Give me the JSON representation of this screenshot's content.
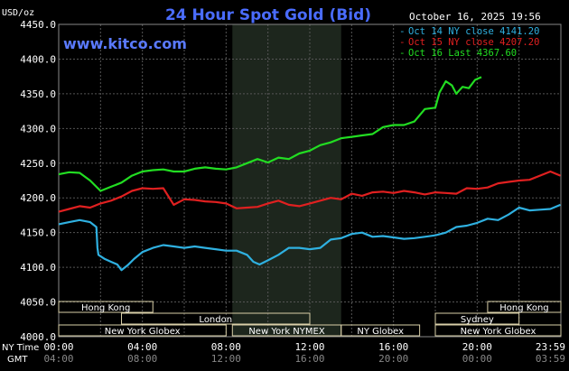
{
  "header": {
    "title": "24 Hour Spot Gold (Bid)",
    "datetime": "October 16, 2025 19:56",
    "watermark": "www.kitco.com",
    "unit": "USD/oz"
  },
  "legend": [
    {
      "text": "Oct 14 NY close 4141.20",
      "color": "#2fb0e0"
    },
    {
      "text": "Oct 15 NY close 4207.20",
      "color": "#e02020"
    },
    {
      "text": "Oct 16 Last 4367.60",
      "color": "#22dd22"
    }
  ],
  "axis_labels": {
    "ny_time": "NY Time",
    "gmt": "GMT"
  },
  "sessions": [
    {
      "label": "Hong Kong",
      "start": 0,
      "end": 4.5,
      "row": 0
    },
    {
      "label": "Hong Kong",
      "start": 20.5,
      "end": 24,
      "row": 0
    },
    {
      "label": "London",
      "start": 3,
      "end": 12,
      "row": 1
    },
    {
      "label": "Sydney",
      "start": 18,
      "end": 22,
      "row": 1
    },
    {
      "label": "New York Globex",
      "start": 0,
      "end": 8,
      "row": 2
    },
    {
      "label": "New York NYMEX",
      "start": 8.3,
      "end": 13.5,
      "row": 2
    },
    {
      "label": "NY Globex",
      "start": 13.5,
      "end": 17.25,
      "row": 2
    },
    {
      "label": "New York Globex",
      "start": 18,
      "end": 24,
      "row": 2
    }
  ],
  "colors": {
    "background": "#000000",
    "grid": "#555555",
    "title": "#4a6cff",
    "watermark": "#5a7aff",
    "text": "#ffffff",
    "gmt_text": "#888888",
    "session_fill": "#d9cfa8",
    "nymex_shade": "#1d261d"
  },
  "chart_data": {
    "type": "line",
    "title": "24 Hour Spot Gold (Bid)",
    "ylabel": "USD/oz",
    "xlabel": "",
    "ylim": [
      4000,
      4450
    ],
    "xlim": [
      0,
      24
    ],
    "yticks": [
      "4450.0",
      "4400.0",
      "4350.0",
      "4300.0",
      "4250.0",
      "4200.0",
      "4150.0",
      "4100.0",
      "4050.0",
      "4000.0"
    ],
    "xticks_ny": [
      "00:00",
      "04:00",
      "08:00",
      "12:00",
      "16:00",
      "20:00",
      "23:59"
    ],
    "xticks_gmt": [
      "04:00",
      "08:00",
      "12:00",
      "16:00",
      "20:00",
      "00:00",
      "03:59"
    ],
    "grid": true,
    "legend_position": "top-right",
    "series": [
      {
        "name": "Oct 14 NY close 4141.20",
        "color": "#2fb0e0",
        "x": [
          0,
          0.5,
          1,
          1.5,
          1.8,
          1.85,
          1.9,
          2.2,
          2.5,
          2.8,
          3.0,
          3.3,
          3.6,
          4.0,
          4.5,
          5.0,
          5.5,
          6.0,
          6.5,
          7.0,
          7.5,
          8.0,
          8.5,
          9.0,
          9.3,
          9.6,
          10.0,
          10.5,
          11.0,
          11.5,
          12.0,
          12.5,
          13.0,
          13.5,
          14.0,
          14.5,
          15.0,
          15.5,
          16.0,
          16.5,
          17.0,
          17.5,
          18.0,
          18.5,
          19.0,
          19.5,
          20.0,
          20.5,
          21.0,
          21.5,
          22.0,
          22.5,
          23.0,
          23.5,
          23.98
        ],
        "y": [
          4162,
          4165,
          4168,
          4165,
          4158,
          4128,
          4118,
          4112,
          4108,
          4104,
          4096,
          4103,
          4112,
          4122,
          4128,
          4132,
          4130,
          4128,
          4130,
          4128,
          4126,
          4124,
          4124,
          4118,
          4108,
          4104,
          4110,
          4118,
          4128,
          4128,
          4126,
          4128,
          4140,
          4142,
          4148,
          4150,
          4144,
          4145,
          4143,
          4141,
          4142,
          4144,
          4146,
          4150,
          4158,
          4160,
          4164,
          4170,
          4168,
          4176,
          4186,
          4182,
          4183,
          4184,
          4190
        ]
      },
      {
        "name": "Oct 15 NY close 4207.20",
        "color": "#e02020",
        "x": [
          0,
          0.5,
          1.0,
          1.5,
          2.0,
          2.5,
          3.0,
          3.5,
          4.0,
          4.5,
          5.0,
          5.5,
          6.0,
          6.5,
          7.0,
          7.5,
          8.0,
          8.5,
          9.0,
          9.5,
          10.0,
          10.5,
          11.0,
          11.5,
          12.0,
          12.5,
          13.0,
          13.5,
          14.0,
          14.5,
          15.0,
          15.5,
          16.0,
          16.5,
          17.0,
          17.5,
          18.0,
          18.5,
          19.0,
          19.5,
          20.0,
          20.5,
          21.0,
          21.5,
          22.0,
          22.5,
          23.0,
          23.5,
          23.98
        ],
        "y": [
          4180,
          4184,
          4188,
          4186,
          4192,
          4196,
          4202,
          4210,
          4214,
          4213,
          4214,
          4190,
          4198,
          4197,
          4195,
          4194,
          4192,
          4185,
          4186,
          4187,
          4192,
          4196,
          4190,
          4188,
          4192,
          4196,
          4200,
          4198,
          4206,
          4203,
          4208,
          4209,
          4207,
          4210,
          4208,
          4205,
          4208,
          4207,
          4206,
          4214,
          4213,
          4215,
          4221,
          4223,
          4225,
          4226,
          4232,
          4238,
          4232
        ]
      },
      {
        "name": "Oct 16 Last 4367.60",
        "color": "#22dd22",
        "x": [
          0,
          0.5,
          1.0,
          1.5,
          2.0,
          2.5,
          3.0,
          3.5,
          4.0,
          4.5,
          5.0,
          5.5,
          6.0,
          6.5,
          7.0,
          7.5,
          8.0,
          8.5,
          9.0,
          9.5,
          10.0,
          10.5,
          11.0,
          11.5,
          12.0,
          12.5,
          13.0,
          13.5,
          14.0,
          14.5,
          15.0,
          15.5,
          16.0,
          16.5,
          17.0,
          17.5,
          18.0,
          18.2,
          18.5,
          18.8,
          19.0,
          19.3,
          19.6,
          19.9,
          20.2
        ],
        "y": [
          4234,
          4237,
          4236,
          4225,
          4210,
          4216,
          4222,
          4232,
          4238,
          4240,
          4241,
          4238,
          4238,
          4242,
          4244,
          4242,
          4241,
          4244,
          4250,
          4256,
          4251,
          4258,
          4256,
          4264,
          4268,
          4276,
          4280,
          4286,
          4288,
          4290,
          4292,
          4302,
          4305,
          4305,
          4310,
          4328,
          4330,
          4352,
          4368,
          4362,
          4350,
          4360,
          4358,
          4370,
          4374
        ]
      }
    ]
  }
}
